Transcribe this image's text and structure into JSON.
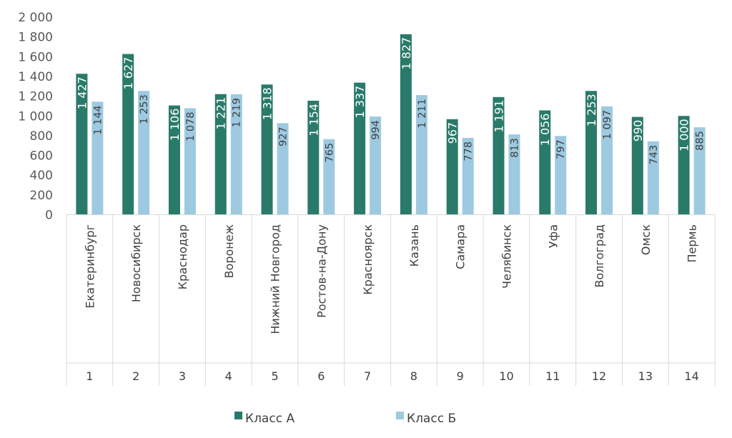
{
  "chart_data": {
    "type": "bar",
    "title": "",
    "xlabel": "",
    "ylabel": "",
    "ylim": [
      0,
      2000
    ],
    "ytick_step": 200,
    "ytick_labels": [
      "0",
      "200",
      "400",
      "600",
      "800",
      "1 000",
      "1 200",
      "1 400",
      "1 600",
      "1 800",
      "2 000"
    ],
    "categories": [
      "Екатеринбург",
      "Новосибирск",
      "Краснодар",
      "Воронеж",
      "Нижний Новгород",
      "Ростов-на-Дону",
      "Красноярск",
      "Казань",
      "Самара",
      "Челябинск",
      "Уфа",
      "Волгоград",
      "Омск",
      "Пермь"
    ],
    "ranks": [
      "1",
      "2",
      "3",
      "4",
      "5",
      "6",
      "7",
      "8",
      "9",
      "10",
      "11",
      "12",
      "13",
      "14"
    ],
    "series": [
      {
        "name": "Класс А",
        "color": "#2a7a6a",
        "values": [
          1427,
          1627,
          1106,
          1221,
          1318,
          1154,
          1337,
          1827,
          967,
          1191,
          1056,
          1253,
          990,
          1000
        ],
        "labels": [
          "1 427",
          "1 627",
          "1 106",
          "1 221",
          "1 318",
          "1 154",
          "1 337",
          "1 827",
          "967",
          "1 191",
          "1 056",
          "1 253",
          "990",
          "1 000"
        ]
      },
      {
        "name": "Класс Б",
        "color": "#9ecae1",
        "values": [
          1144,
          1253,
          1078,
          1219,
          927,
          765,
          994,
          1211,
          778,
          813,
          797,
          1097,
          743,
          885
        ],
        "labels": [
          "1 144",
          "1 253",
          "1 078",
          "1 219",
          "927",
          "765",
          "994",
          "1 211",
          "778",
          "813",
          "797",
          "1 097",
          "743",
          "885"
        ]
      }
    ],
    "legend": "bottom-center",
    "grid": false
  }
}
